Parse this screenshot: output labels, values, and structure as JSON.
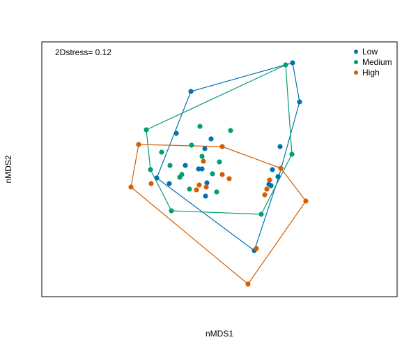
{
  "chart_data": {
    "type": "scatter",
    "title": "",
    "xlabel": "nMDS1",
    "ylabel": "nMDS2",
    "annotation": "2Dstress= 0.12",
    "axes_ticks_shown": false,
    "grid": false,
    "legend_position": "top-right",
    "hulls": true,
    "series": [
      {
        "name": "Low",
        "color": "#0072B2",
        "hull": [
          [
            420,
            90
          ],
          [
            430,
            146
          ],
          [
            400,
            254
          ],
          [
            365,
            359
          ],
          [
            225,
            255
          ],
          [
            274,
            131
          ]
        ],
        "points": [
          [
            420,
            90
          ],
          [
            430,
            146
          ],
          [
            274,
            131
          ],
          [
            253,
            191
          ],
          [
            303,
            199
          ],
          [
            294,
            213
          ],
          [
            402,
            210
          ],
          [
            266,
            237
          ],
          [
            285,
            242
          ],
          [
            290,
            242
          ],
          [
            225,
            255
          ],
          [
            243,
            263
          ],
          [
            297,
            262
          ],
          [
            391,
            243
          ],
          [
            399,
            253
          ],
          [
            386,
            264
          ],
          [
            295,
            281
          ],
          [
            389,
            266
          ],
          [
            365,
            359
          ]
        ]
      },
      {
        "name": "Medium",
        "color": "#009E73",
        "hull": [
          [
            410,
            93
          ],
          [
            419,
            221
          ],
          [
            375,
            307
          ],
          [
            246,
            302
          ],
          [
            216,
            243
          ],
          [
            210,
            186
          ]
        ],
        "points": [
          [
            410,
            93
          ],
          [
            210,
            186
          ],
          [
            287,
            181
          ],
          [
            331,
            187
          ],
          [
            275,
            208
          ],
          [
            290,
            224
          ],
          [
            232,
            218
          ],
          [
            244,
            237
          ],
          [
            315,
            232
          ],
          [
            216,
            243
          ],
          [
            261,
            250
          ],
          [
            258,
            254
          ],
          [
            305,
            249
          ],
          [
            419,
            221
          ],
          [
            272,
            271
          ],
          [
            311,
            275
          ],
          [
            246,
            302
          ],
          [
            375,
            307
          ]
        ]
      },
      {
        "name": "High",
        "color": "#D55E00",
        "hull": [
          [
            199,
            207
          ],
          [
            319,
            210
          ],
          [
            403,
            241
          ],
          [
            439,
            288
          ],
          [
            356,
            407
          ],
          [
            188,
            268
          ]
        ],
        "points": [
          [
            199,
            207
          ],
          [
            319,
            210
          ],
          [
            292,
            231
          ],
          [
            319,
            250
          ],
          [
            403,
            241
          ],
          [
            329,
            256
          ],
          [
            217,
            263
          ],
          [
            286,
            265
          ],
          [
            282,
            272
          ],
          [
            296,
            268
          ],
          [
            387,
            258
          ],
          [
            383,
            271
          ],
          [
            380,
            279
          ],
          [
            188,
            268
          ],
          [
            439,
            288
          ],
          [
            368,
            356
          ],
          [
            356,
            407
          ]
        ]
      }
    ]
  }
}
